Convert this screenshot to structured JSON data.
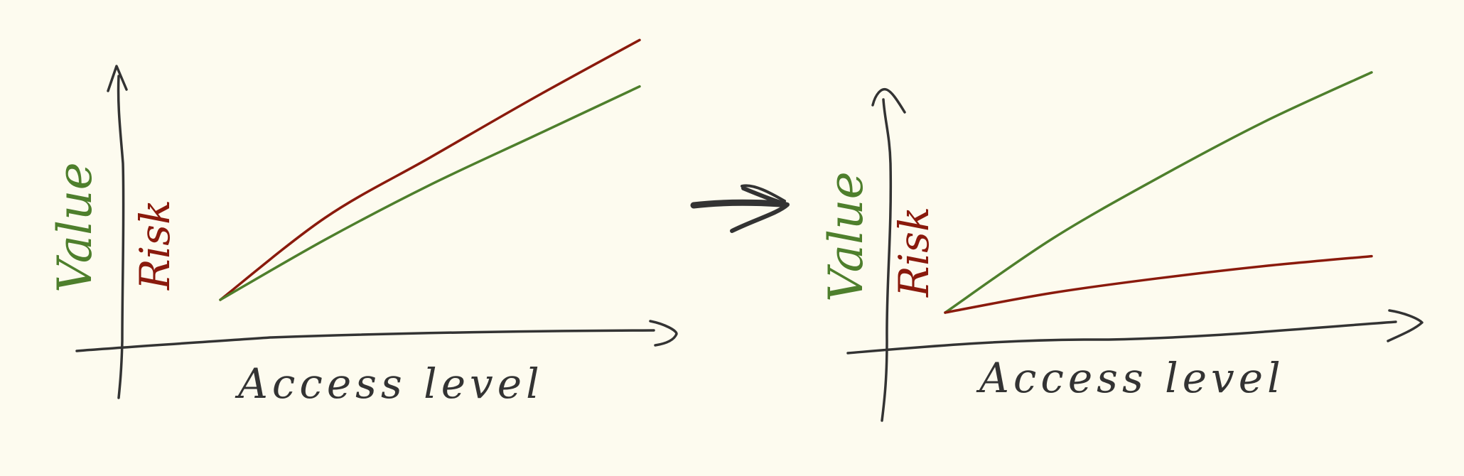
{
  "colors": {
    "background": "#fdfbef",
    "ink": "#333333",
    "value": "#4e7f2c",
    "risk": "#8a1a0c"
  },
  "chart_data": [
    {
      "type": "line",
      "title": "",
      "xlabel": "Access level",
      "ylabel_value": "Value",
      "ylabel_risk": "Risk",
      "x": [
        0,
        0.25,
        0.5,
        0.75,
        1
      ],
      "xlim": [
        0,
        1.2
      ],
      "ylim": [
        0,
        1.1
      ],
      "series": [
        {
          "name": "Risk",
          "color": "#8a1a0c",
          "values": [
            0,
            0.3,
            0.52,
            0.74,
            0.95
          ]
        },
        {
          "name": "Value",
          "color": "#4e7f2c",
          "values": [
            0,
            0.22,
            0.42,
            0.6,
            0.78
          ]
        }
      ]
    },
    {
      "type": "line",
      "title": "",
      "xlabel": "Access level",
      "ylabel_value": "Value",
      "ylabel_risk": "Risk",
      "x": [
        0,
        0.25,
        0.5,
        0.75,
        1
      ],
      "xlim": [
        0,
        1.1
      ],
      "ylim": [
        0,
        1.1
      ],
      "series": [
        {
          "name": "Value",
          "color": "#4e7f2c",
          "values": [
            0,
            0.3,
            0.55,
            0.78,
            0.98
          ]
        },
        {
          "name": "Risk",
          "color": "#8a1a0c",
          "values": [
            0,
            0.08,
            0.14,
            0.19,
            0.23
          ]
        }
      ]
    }
  ]
}
